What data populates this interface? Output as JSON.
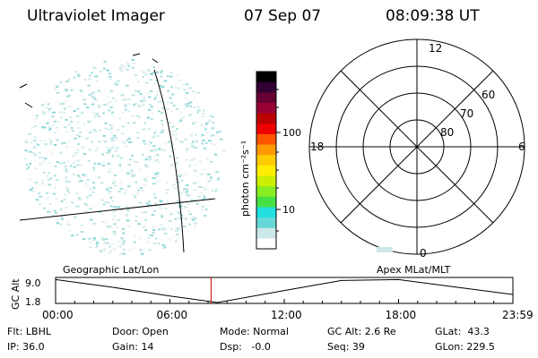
{
  "header": {
    "title": "Ultraviolet Imager",
    "date": "07 Sep 07",
    "time": "08:09:38 UT"
  },
  "colorbar": {
    "label": "photon cm⁻²s⁻¹",
    "ticks": [
      "100",
      "10"
    ],
    "scale": "log",
    "colors": [
      "#ffffff",
      "#cce8e8",
      "#66d8d8",
      "#22e0e0",
      "#44e044",
      "#88ee22",
      "#ccee00",
      "#ffee00",
      "#ffcc00",
      "#ff9900",
      "#ff5500",
      "#ee0000",
      "#bb0000",
      "#990033",
      "#660033",
      "#330033",
      "#000000"
    ]
  },
  "polar_plot": {
    "mlt_labels": [
      "12",
      "18",
      "6",
      "0"
    ],
    "mlat_labels": [
      "60",
      "70",
      "80"
    ]
  },
  "timeline": {
    "left_label": "Geographic Lat/Lon",
    "right_label": "Apex MLat/MLT",
    "y_axis_label": "GC Alt",
    "y_ticks": [
      "9.0",
      "1.8"
    ],
    "x_ticks": [
      "00:00",
      "06:00",
      "12:00",
      "18:00",
      "23:59"
    ],
    "marker_color": "#cc0000"
  },
  "chart_data": {
    "type": "line",
    "title": "",
    "xlabel": "",
    "ylabel": "GC Alt",
    "ylim": [
      1.8,
      9.0
    ],
    "x": [
      0,
      3,
      6,
      8.5,
      12,
      15,
      18,
      21,
      23.98
    ],
    "series": [
      {
        "values": [
          8.9,
          6.5,
          3.8,
          1.8,
          5.5,
          8.6,
          8.9,
          6.6,
          4.3
        ]
      }
    ],
    "current_time": 8.16
  },
  "info": {
    "row1": {
      "flt": "Flt: LBHL",
      "door": "Door: Open",
      "mode": "Mode: Normal",
      "gcalt": "GC Alt: 2.6 Re",
      "glat": "GLat:  43.3"
    },
    "row2": {
      "ip": "IP: 36.0",
      "gain": "Gain: 14",
      "dsp": "Dsp:   -0.0",
      "seq": "Seq: 39",
      "glon": "GLon: 229.5"
    }
  }
}
